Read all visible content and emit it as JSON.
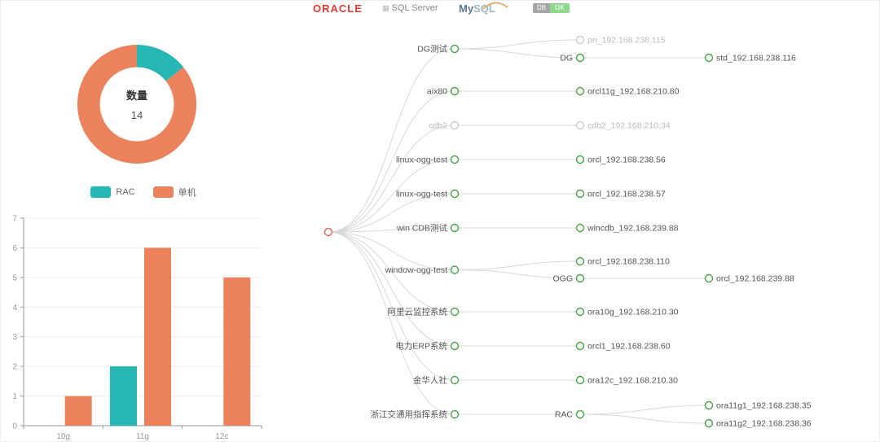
{
  "header": {
    "oracle": "ORACLE",
    "sqlserver": "SQL Server",
    "mysql_my": "My",
    "mysql_sql": "SQL",
    "badge_left": "DB",
    "badge_right": "OK"
  },
  "colors": {
    "rac_teal": "#26b7b2",
    "standalone_orange": "#eb825c",
    "node_green": "#46a546",
    "node_gray": "#cccccc",
    "root_red": "#e0655a",
    "link_gray": "#d8d8d8",
    "axis_gray": "#999999",
    "grid_gray": "#ececec",
    "label_gray": "#555555",
    "label_offline": "#bcbcbc"
  },
  "chart_data": [
    {
      "type": "pie",
      "title": "数量",
      "center_label": "数量",
      "center_value": "14",
      "inner_radius_ratio": 0.62,
      "legend_position": "bottom",
      "series": [
        {
          "name": "RAC",
          "value": 2,
          "color": "#26b7b2"
        },
        {
          "name": "单机",
          "value": 12,
          "color": "#eb825c"
        }
      ]
    },
    {
      "type": "bar",
      "categories": [
        "10g",
        "11g",
        "12c"
      ],
      "series": [
        {
          "name": "RAC",
          "color": "#26b7b2",
          "values": [
            0,
            2,
            0
          ]
        },
        {
          "name": "单机",
          "color": "#eb825c",
          "values": [
            1,
            6,
            5
          ]
        }
      ],
      "ylim": [
        0,
        7
      ],
      "yticks": [
        0,
        1,
        2,
        3,
        4,
        5,
        6,
        7
      ],
      "grid": true,
      "legend": [
        "RAC",
        "单机"
      ]
    }
  ],
  "tree": {
    "children": [
      {
        "label": "DG测试",
        "status": "ok",
        "children": [
          {
            "label": "pri_192.168.238.115",
            "status": "offline"
          },
          {
            "label": "DG",
            "status": "ok",
            "children": [
              {
                "label": "std_192.168.238.116",
                "status": "ok"
              }
            ]
          }
        ]
      },
      {
        "label": "aix80",
        "status": "ok",
        "children": [
          {
            "label": "orcl11g_192.168.210.80",
            "status": "ok"
          }
        ]
      },
      {
        "label": "cdb2",
        "status": "offline",
        "children": [
          {
            "label": "cdb2_192.168.210.34",
            "status": "offline"
          }
        ]
      },
      {
        "label": "linux-ogg-test",
        "status": "ok",
        "children": [
          {
            "label": "orcl_192.168.238.56",
            "status": "ok"
          }
        ]
      },
      {
        "label": "linux-ogg-test",
        "status": "ok",
        "children": [
          {
            "label": "orcl_192.168.238.57",
            "status": "ok"
          }
        ]
      },
      {
        "label": "win CDB测试",
        "status": "ok",
        "children": [
          {
            "label": "wincdb_192.168.239.88",
            "status": "ok"
          }
        ]
      },
      {
        "label": "window-ogg-test",
        "status": "ok",
        "children": [
          {
            "label": "orcl_192.168.238.110",
            "status": "ok"
          },
          {
            "label": "OGG",
            "status": "ok",
            "children": [
              {
                "label": "orcl_192.168.239.88",
                "status": "ok"
              }
            ]
          }
        ]
      },
      {
        "label": "阿里云监控系统",
        "status": "ok",
        "children": [
          {
            "label": "ora10g_192.168.210.30",
            "status": "ok"
          }
        ]
      },
      {
        "label": "电力ERP系统",
        "status": "ok",
        "children": [
          {
            "label": "orcl1_192.168.238.60",
            "status": "ok"
          }
        ]
      },
      {
        "label": "金华人社",
        "status": "ok",
        "children": [
          {
            "label": "ora12c_192.168.210.30",
            "status": "ok"
          }
        ]
      },
      {
        "label": "浙江交通用指挥系统",
        "status": "ok",
        "children": [
          {
            "label": "RAC",
            "status": "ok",
            "children": [
              {
                "label": "ora11g1_192.168.238.35",
                "status": "ok"
              },
              {
                "label": "ora11g2_192.168.238.36",
                "status": "ok"
              }
            ]
          }
        ]
      }
    ]
  }
}
